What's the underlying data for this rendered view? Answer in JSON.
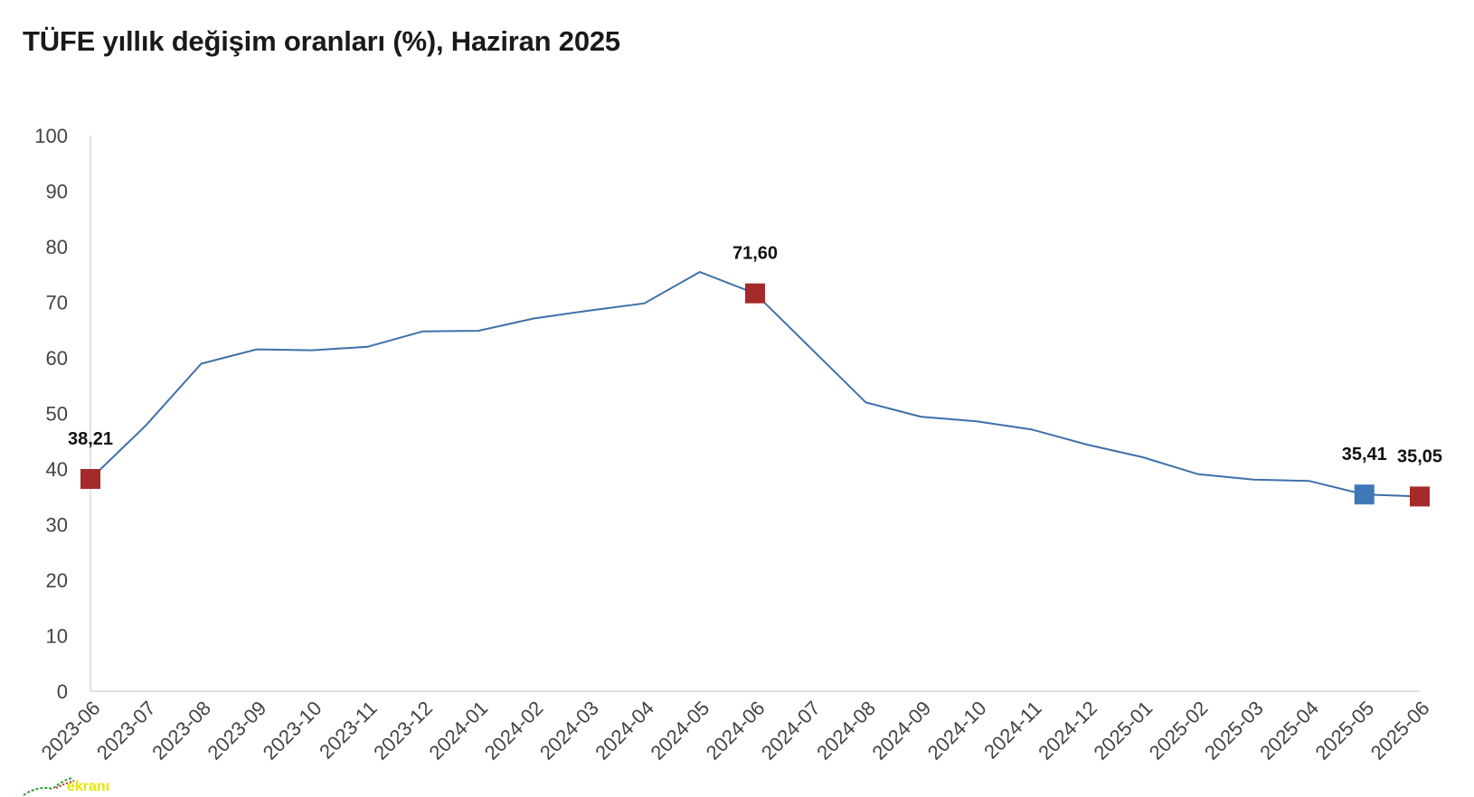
{
  "chart_data": {
    "type": "line",
    "title": "TÜFE yıllık değişim oranları (%), Haziran 2025",
    "xlabel": "",
    "ylabel": "",
    "ylim": [
      0,
      100
    ],
    "yticks": [
      0,
      10,
      20,
      30,
      40,
      50,
      60,
      70,
      80,
      90,
      100
    ],
    "grid": false,
    "legend": "none",
    "line_color": "#3e6fa8",
    "categories": [
      "2023-06",
      "2023-07",
      "2023-08",
      "2023-09",
      "2023-10",
      "2023-11",
      "2023-12",
      "2024-01",
      "2024-02",
      "2024-03",
      "2024-04",
      "2024-05",
      "2024-06",
      "2024-07",
      "2024-08",
      "2024-09",
      "2024-10",
      "2024-11",
      "2024-12",
      "2025-01",
      "2025-02",
      "2025-03",
      "2025-04",
      "2025-05",
      "2025-06"
    ],
    "series": [
      {
        "values": [
          38.21,
          47.83,
          58.94,
          61.53,
          61.36,
          61.98,
          64.77,
          64.86,
          67.07,
          68.5,
          69.8,
          75.45,
          71.6,
          61.78,
          51.97,
          49.38,
          48.58,
          47.09,
          44.38,
          42.12,
          39.05,
          38.1,
          37.86,
          35.41,
          35.05
        ]
      }
    ],
    "annotations": [
      {
        "x": "2023-06",
        "value": 38.21,
        "label": "38,21",
        "color": "#a52a2a"
      },
      {
        "x": "2024-06",
        "value": 71.6,
        "label": "71,60",
        "color": "#a52a2a"
      },
      {
        "x": "2025-05",
        "value": 35.41,
        "label": "35,41",
        "color": "#3e78b8"
      },
      {
        "x": "2025-06",
        "value": 35.05,
        "label": "35,05",
        "color": "#a52a2a"
      }
    ]
  },
  "watermark": {
    "text": "ekranı"
  }
}
